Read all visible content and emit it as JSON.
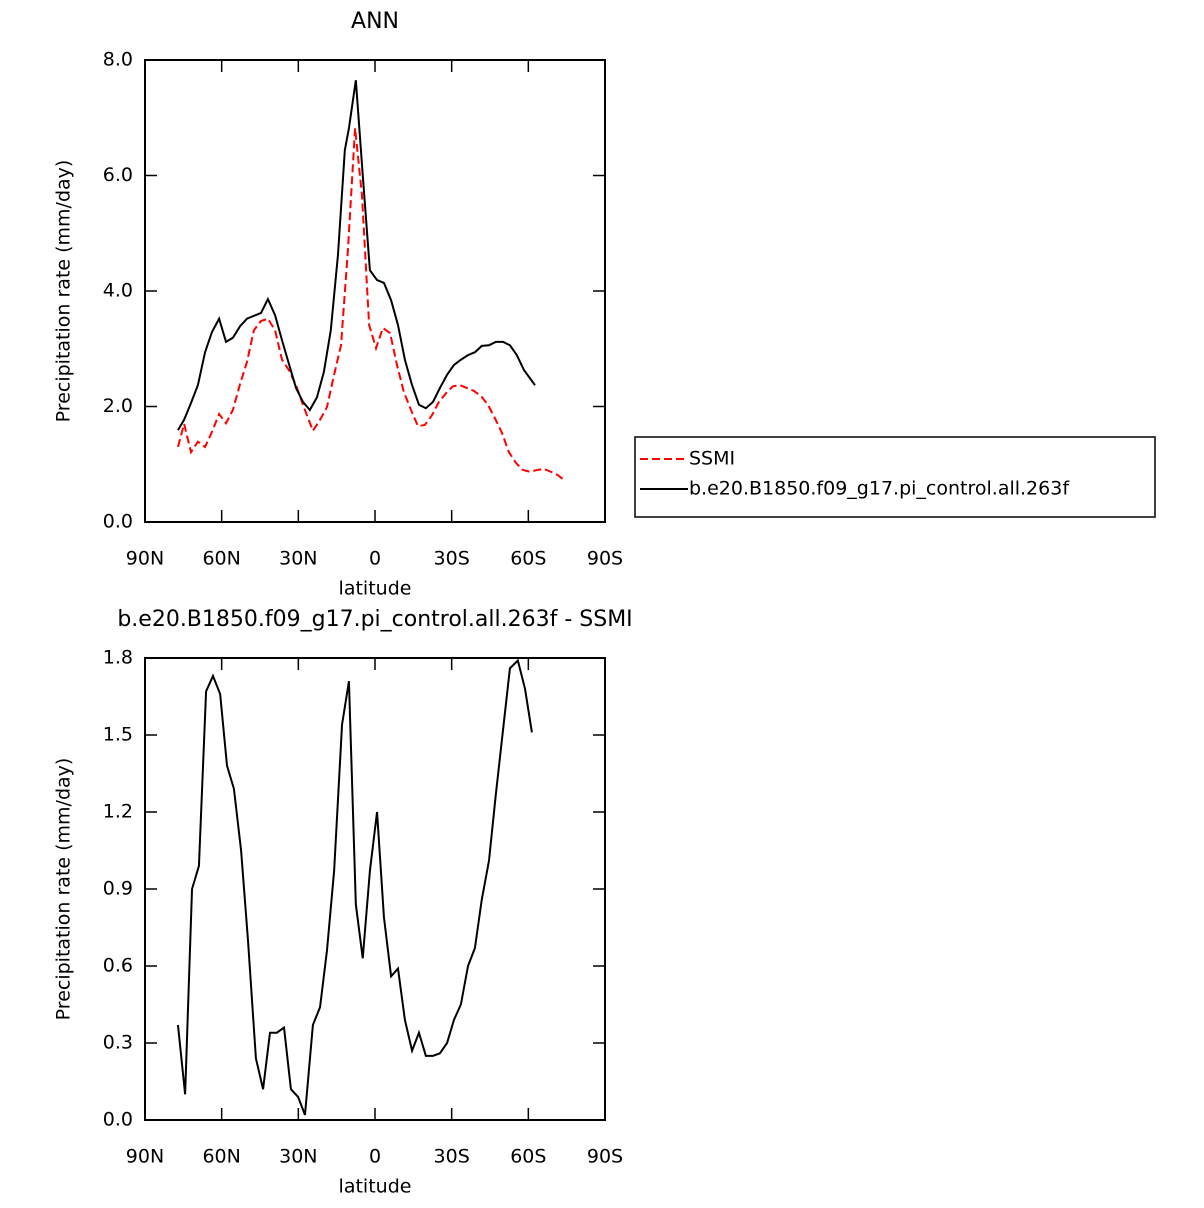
{
  "chart_data": [
    {
      "type": "line",
      "title": "ANN",
      "xlabel": "latitude",
      "ylabel": "Precipitation rate (mm/day)",
      "xlim": [
        90,
        -90
      ],
      "xticks": [
        {
          "value": 90,
          "label": "90N"
        },
        {
          "value": 60,
          "label": "60N"
        },
        {
          "value": 30,
          "label": "30N"
        },
        0,
        {
          "value": -30,
          "label": "30S"
        },
        {
          "value": -60,
          "label": "60S"
        },
        {
          "value": -90,
          "label": "90S"
        }
      ],
      "ylim": [
        0,
        8
      ],
      "yticks": [
        {
          "value": 0,
          "label": "0.0"
        },
        {
          "value": 2,
          "label": "2.0"
        },
        {
          "value": 4,
          "label": "4.0"
        },
        {
          "value": 6,
          "label": "6.0"
        },
        {
          "value": 8,
          "label": "8.0"
        }
      ],
      "legend": "outside-right",
      "series": [
        {
          "name": "SSMI",
          "color": "#ff0000",
          "line_style": "dashed",
          "x": [
            77.1,
            74.7,
            72.0,
            69.3,
            66.5,
            63.8,
            61.0,
            58.3,
            55.6,
            52.8,
            50.1,
            47.4,
            44.6,
            41.9,
            39.1,
            36.4,
            33.7,
            30.9,
            28.2,
            24.3,
            21.5,
            18.8,
            16.0,
            13.3,
            10.6,
            7.8,
            5.1,
            2.3,
            -0.4,
            -3.1,
            -5.9,
            -8.6,
            -11.3,
            -14.1,
            -16.8,
            -19.5,
            -22.3,
            -25.0,
            -27.8,
            -30.5,
            -33.2,
            -36.0,
            -38.7,
            -41.5,
            -44.2,
            -46.9,
            -49.7,
            -52.4,
            -55.2,
            -57.9,
            -60.6,
            -63.4,
            -66.1,
            -68.8,
            -71.6,
            -73.9
          ],
          "values": [
            1.3,
            1.7,
            1.21,
            1.39,
            1.3,
            1.56,
            1.87,
            1.71,
            1.94,
            2.39,
            2.77,
            3.32,
            3.48,
            3.52,
            3.32,
            2.81,
            2.63,
            2.37,
            2.03,
            1.58,
            1.77,
            1.99,
            2.55,
            3.06,
            4.71,
            6.82,
            5.66,
            3.41,
            3.01,
            3.36,
            3.27,
            2.72,
            2.25,
            1.94,
            1.66,
            1.68,
            1.85,
            2.08,
            2.23,
            2.35,
            2.37,
            2.32,
            2.27,
            2.18,
            2.03,
            1.8,
            1.54,
            1.21,
            1.02,
            0.9,
            0.87,
            0.9,
            0.92,
            0.87,
            0.81,
            0.73
          ]
        },
        {
          "name": "b.e20.B1850.f09_g17.pi_control.all.263f",
          "color": "#000000",
          "line_style": "solid",
          "x": [
            77.1,
            74.7,
            72.0,
            69.3,
            66.5,
            63.8,
            61.0,
            58.3,
            55.6,
            52.8,
            50.1,
            47.4,
            44.6,
            41.9,
            39.1,
            36.4,
            33.7,
            30.9,
            28.2,
            25.5,
            22.7,
            20.0,
            17.3,
            14.5,
            11.8,
            10.2,
            7.5,
            4.8,
            2.0,
            -0.8,
            -3.5,
            -6.3,
            -9.0,
            -11.7,
            -14.5,
            -17.2,
            -19.9,
            -22.7,
            -25.4,
            -28.2,
            -30.9,
            -33.6,
            -36.4,
            -39.1,
            -41.8,
            -44.6,
            -47.3,
            -50.1,
            -52.8,
            -55.5,
            -58.3,
            -62.6
          ],
          "values": [
            1.59,
            1.77,
            2.06,
            2.37,
            2.94,
            3.29,
            3.52,
            3.12,
            3.19,
            3.39,
            3.52,
            3.57,
            3.62,
            3.86,
            3.58,
            3.15,
            2.74,
            2.32,
            2.08,
            1.94,
            2.16,
            2.6,
            3.32,
            4.62,
            6.44,
            6.82,
            7.65,
            6.01,
            4.36,
            4.19,
            4.14,
            3.84,
            3.41,
            2.81,
            2.37,
            2.03,
            1.97,
            2.08,
            2.32,
            2.55,
            2.72,
            2.81,
            2.89,
            2.94,
            3.05,
            3.06,
            3.12,
            3.12,
            3.06,
            2.89,
            2.63,
            2.37
          ]
        }
      ]
    },
    {
      "type": "line",
      "title": "b.e20.B1850.f09_g17.pi_control.all.263f - SSMI",
      "xlabel": "latitude",
      "ylabel": "Precipitation rate (mm/day)",
      "xlim": [
        90,
        -90
      ],
      "xticks": [
        {
          "value": 90,
          "label": "90N"
        },
        {
          "value": 60,
          "label": "60N"
        },
        {
          "value": 30,
          "label": "30N"
        },
        0,
        {
          "value": -30,
          "label": "30S"
        },
        {
          "value": -60,
          "label": "60S"
        },
        {
          "value": -90,
          "label": "90S"
        }
      ],
      "ylim": [
        0,
        1.8
      ],
      "yticks": [
        {
          "value": 0,
          "label": "0.0"
        },
        0.3,
        0.6,
        0.9,
        1.2,
        1.5,
        1.8
      ],
      "series": [
        {
          "color": "#000000",
          "line_style": "solid",
          "x": [
            77.1,
            74.3,
            71.6,
            68.9,
            66.1,
            63.4,
            60.6,
            57.9,
            55.2,
            52.4,
            49.7,
            46.6,
            43.8,
            41.1,
            38.4,
            35.6,
            32.9,
            30.1,
            27.4,
            24.3,
            21.5,
            18.8,
            16.0,
            12.9,
            10.2,
            7.5,
            4.8,
            2.0,
            -0.8,
            -3.5,
            -6.3,
            -9.0,
            -11.7,
            -14.5,
            -17.2,
            -19.9,
            -22.7,
            -25.4,
            -28.2,
            -30.9,
            -33.6,
            -36.4,
            -39.1,
            -41.8,
            -44.6,
            -47.3,
            -50.1,
            -52.8,
            -55.9,
            -58.7,
            -61.4
          ],
          "values": [
            0.37,
            0.1,
            0.9,
            0.99,
            1.67,
            1.73,
            1.66,
            1.38,
            1.29,
            1.05,
            0.7,
            0.24,
            0.12,
            0.34,
            0.34,
            0.36,
            0.12,
            0.09,
            0.02,
            0.37,
            0.44,
            0.66,
            0.97,
            1.54,
            1.71,
            0.84,
            0.63,
            0.97,
            1.2,
            0.79,
            0.56,
            0.59,
            0.39,
            0.27,
            0.34,
            0.25,
            0.25,
            0.26,
            0.3,
            0.39,
            0.45,
            0.6,
            0.67,
            0.86,
            1.01,
            1.27,
            1.52,
            1.76,
            1.79,
            1.68,
            1.51
          ]
        }
      ]
    }
  ]
}
